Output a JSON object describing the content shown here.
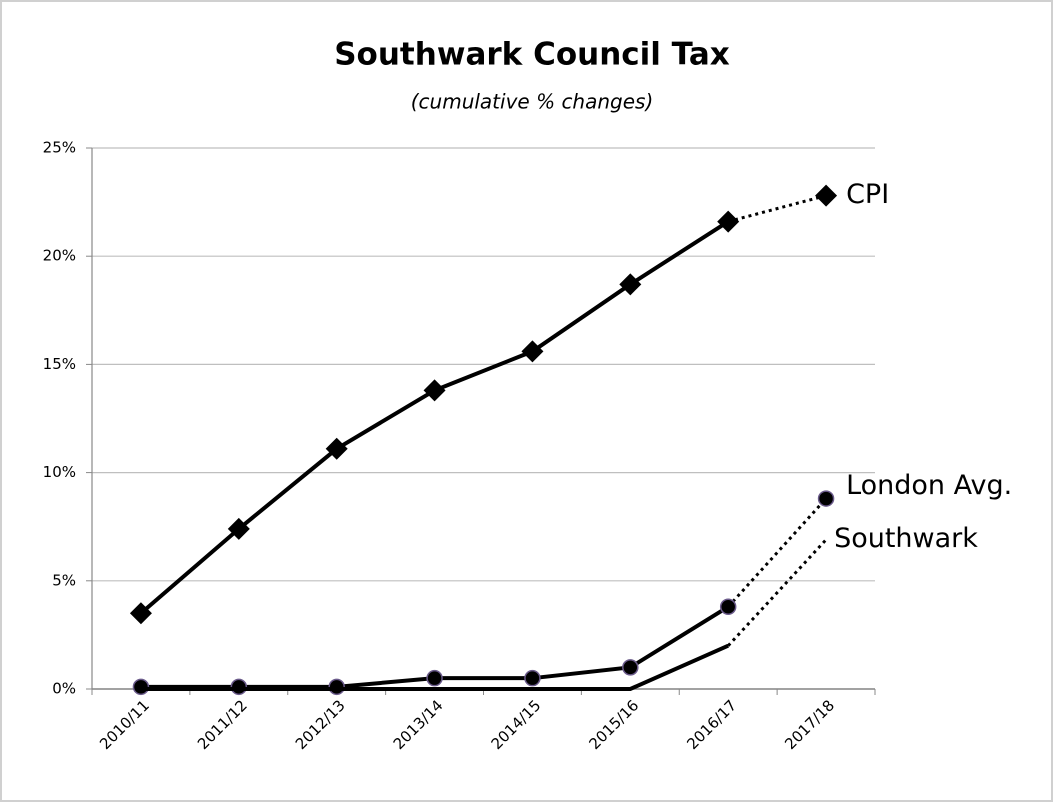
{
  "chart_data": {
    "type": "line",
    "title": "Southwark Council Tax",
    "subtitle": "(cumulative % changes)",
    "categories": [
      "2010/11",
      "2011/12",
      "2012/13",
      "2013/14",
      "2014/15",
      "2015/16",
      "2016/17",
      "2017/18"
    ],
    "series": [
      {
        "name": "CPI",
        "color": "#000000",
        "marker": "diamond",
        "dotted_from": 6,
        "values": [
          3.5,
          7.4,
          11.1,
          13.8,
          15.6,
          18.7,
          21.6,
          22.8
        ]
      },
      {
        "name": "London Avg.",
        "color": "#000000",
        "marker": "circle",
        "dotted_from": 6,
        "values": [
          0.1,
          0.1,
          0.1,
          0.5,
          0.5,
          1.0,
          3.8,
          8.8
        ]
      },
      {
        "name": "Southwark",
        "color": "#000000",
        "marker": "none",
        "dotted_from": 6,
        "values": [
          0,
          0,
          0,
          0,
          0,
          0,
          2.0,
          6.9
        ]
      }
    ],
    "ylim": [
      0,
      25
    ],
    "yticks": [
      {
        "value": 0,
        "label": "0%"
      },
      {
        "value": 5,
        "label": "5%"
      },
      {
        "value": 10,
        "label": "10%"
      },
      {
        "value": 15,
        "label": "15%"
      },
      {
        "value": 20,
        "label": "20%"
      },
      {
        "value": 25,
        "label": "25%"
      }
    ],
    "grid": true
  }
}
